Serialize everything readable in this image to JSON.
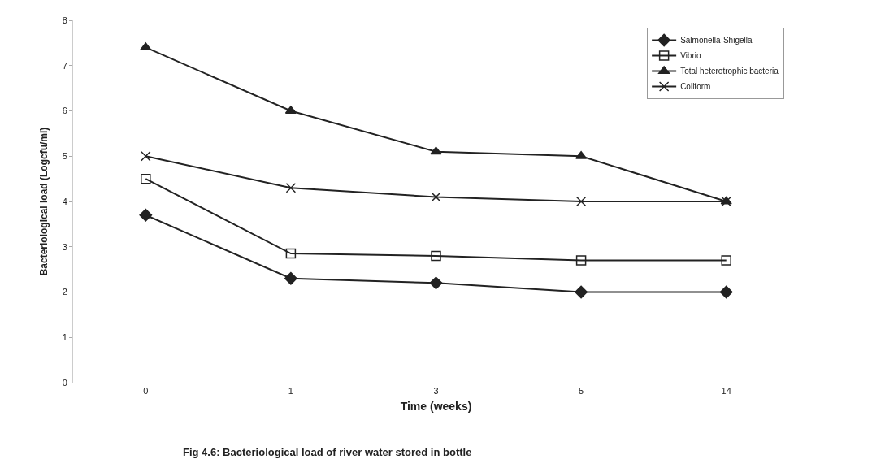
{
  "chart_data": {
    "type": "line",
    "xlabel": "Time (weeks)",
    "ylabel": "Bacteriological load (Logcfu/ml)",
    "categories": [
      "0",
      "1",
      "3",
      "5",
      "14"
    ],
    "series": [
      {
        "name": "Salmonella-Shigella",
        "color": "#222222",
        "marker": "diamond",
        "values": [
          3.7,
          2.3,
          2.2,
          2.0,
          2.0
        ]
      },
      {
        "name": "Vibrio",
        "color": "#222222",
        "marker": "square",
        "values": [
          4.5,
          2.85,
          2.8,
          2.7,
          2.7
        ]
      },
      {
        "name": "Total heterotrophic bacteria",
        "color": "#222222",
        "marker": "triangle",
        "values": [
          7.4,
          6.0,
          5.1,
          5.0,
          4.0
        ]
      },
      {
        "name": "Coliform",
        "color": "#222222",
        "marker": "cross",
        "values": [
          5.0,
          4.3,
          4.1,
          4.0,
          4.0
        ]
      }
    ],
    "ylim": [
      0,
      8
    ],
    "yticks": [
      0,
      1,
      2,
      3,
      4,
      5,
      6,
      7,
      8
    ],
    "grid": false,
    "legend": "top right",
    "annotations": [
      "Fig 4.6: Bacteriological load of river water stored in bottle"
    ]
  }
}
